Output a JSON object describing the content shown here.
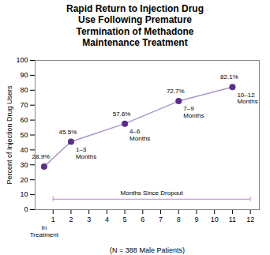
{
  "chart_data": {
    "type": "line",
    "title": "Rapid Return to Injection Drug\nUse Following Premature\nTermination of Methadone\nMaintenance Treatment",
    "xlabel": "(N = 388 Male Patients)",
    "ylabel": "Percent of Injection Drug Users",
    "x": [
      0.5,
      2,
      5,
      8,
      11
    ],
    "values": [
      28.9,
      45.5,
      57.6,
      72.7,
      82.1
    ],
    "value_labels": [
      "28.9%",
      "45.5%",
      "57.6%",
      "72.7%",
      "82.1%"
    ],
    "data_labels": true,
    "color": "#5b2d8e",
    "marker": "o",
    "xlim": [
      0,
      12.5
    ],
    "xticks": [
      1,
      2,
      3,
      4,
      5,
      6,
      7,
      8,
      9,
      10,
      11,
      12
    ],
    "ylim": [
      0,
      100
    ],
    "yticks": [
      0,
      10,
      20,
      30,
      40,
      50,
      60,
      70,
      80,
      90,
      100
    ],
    "grid": false,
    "annotations": [
      {
        "text": "1–3\nMonths",
        "x": 2,
        "y": 45.5
      },
      {
        "text": "4–6\nMonths",
        "x": 5,
        "y": 57.6
      },
      {
        "text": "7–9\nMonths",
        "x": 8,
        "y": 72.7
      },
      {
        "text": "10–12\nMonths",
        "x": 11,
        "y": 82.1
      },
      {
        "text": "In\nTreatment",
        "x": 0.5
      },
      {
        "text": "Months Since Dropout",
        "x1": 1,
        "x2": 12,
        "y": 7
      }
    ]
  }
}
